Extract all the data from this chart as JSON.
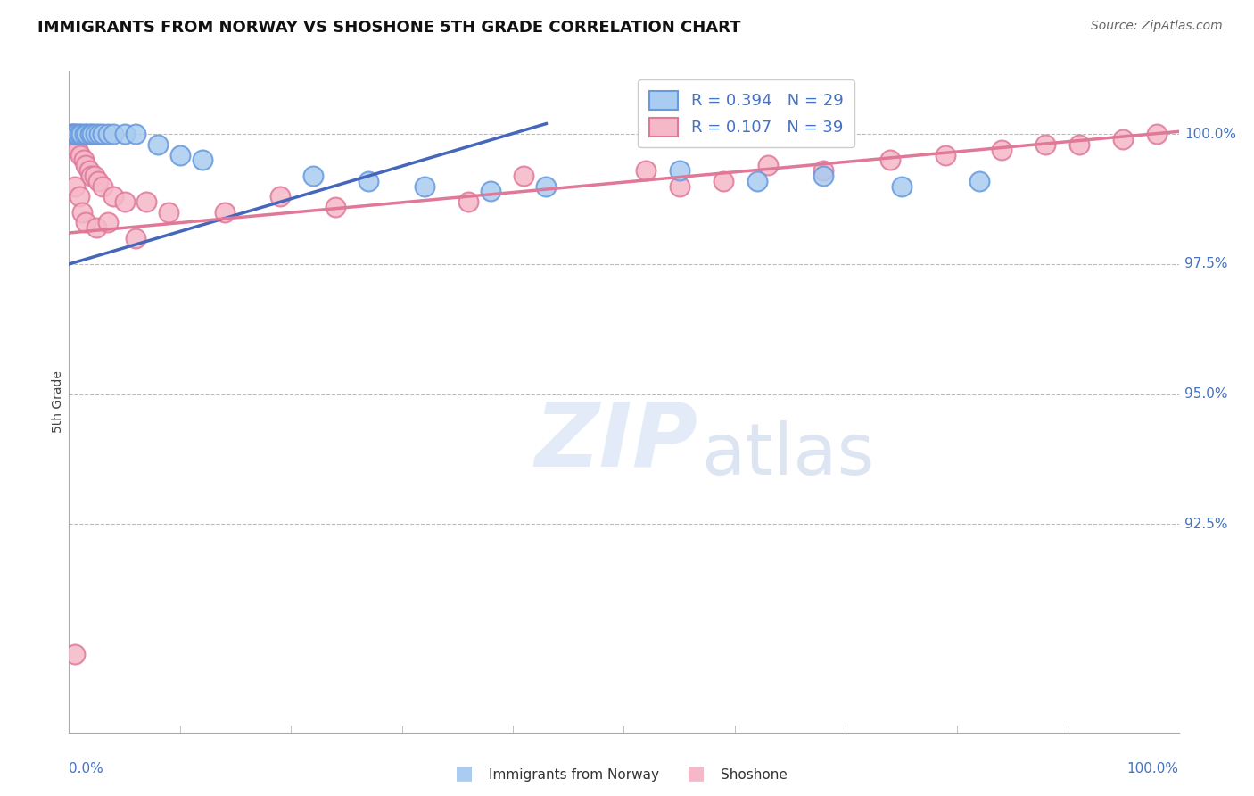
{
  "title": "IMMIGRANTS FROM NORWAY VS SHOSHONE 5TH GRADE CORRELATION CHART",
  "source": "Source: ZipAtlas.com",
  "ylabel": "5th Grade",
  "xlim": [
    0.0,
    100.0
  ],
  "ylim": [
    88.5,
    101.2
  ],
  "yticks": [
    92.5,
    95.0,
    97.5,
    100.0
  ],
  "ytick_labels": [
    "92.5%",
    "95.0%",
    "97.5%",
    "100.0%"
  ],
  "norway_fill": "#AACCF0",
  "norway_edge": "#6699DD",
  "shoshone_fill": "#F5B8C8",
  "shoshone_edge": "#E0789A",
  "norway_line_color": "#4466BB",
  "shoshone_line_color": "#E07898",
  "norway_R": "0.394",
  "norway_N": "29",
  "shoshone_R": "0.107",
  "shoshone_N": "39",
  "legend_R_color": "#4472C4",
  "legend_N_color": "#4472C4",
  "axis_tick_color": "#4472C4",
  "norway_x": [
    0.3,
    0.5,
    0.7,
    0.9,
    1.1,
    1.4,
    1.6,
    1.9,
    2.1,
    2.4,
    2.7,
    3.0,
    3.5,
    4.0,
    5.0,
    6.0,
    8.0,
    10.0,
    12.0,
    22.0,
    27.0,
    32.0,
    38.0,
    43.0,
    55.0,
    62.0,
    68.0,
    75.0,
    82.0
  ],
  "norway_y": [
    100.0,
    100.0,
    100.0,
    100.0,
    100.0,
    100.0,
    100.0,
    100.0,
    100.0,
    100.0,
    100.0,
    100.0,
    100.0,
    100.0,
    100.0,
    100.0,
    99.8,
    99.6,
    99.5,
    99.2,
    99.1,
    99.0,
    98.9,
    99.0,
    99.3,
    99.1,
    99.2,
    99.0,
    99.1
  ],
  "shoshone_x": [
    0.2,
    0.4,
    0.6,
    0.8,
    1.0,
    1.3,
    1.5,
    1.8,
    2.0,
    2.3,
    2.6,
    3.0,
    4.0,
    5.0,
    7.0,
    9.0,
    14.0,
    19.0,
    24.0,
    36.0,
    41.0,
    52.0,
    55.0,
    59.0,
    63.0,
    68.0,
    74.0,
    79.0,
    84.0,
    88.0,
    91.0,
    95.0,
    98.0
  ],
  "shoshone_y": [
    100.0,
    100.0,
    99.8,
    99.7,
    99.6,
    99.5,
    99.4,
    99.3,
    99.2,
    99.2,
    99.1,
    99.0,
    98.8,
    98.7,
    98.7,
    98.5,
    98.5,
    98.8,
    98.6,
    98.7,
    99.2,
    99.3,
    99.0,
    99.1,
    99.4,
    99.3,
    99.5,
    99.6,
    99.7,
    99.8,
    99.8,
    99.9,
    100.0
  ],
  "shoshone_extra_x": [
    0.5,
    0.9,
    1.2,
    1.5,
    2.5,
    3.5,
    6.0
  ],
  "shoshone_extra_y": [
    99.0,
    98.8,
    98.5,
    98.3,
    98.2,
    98.3,
    98.0
  ],
  "shoshone_outlier_x": 0.5,
  "shoshone_outlier_y": 90.0,
  "blue_line_x": [
    0.0,
    43.0
  ],
  "blue_line_y": [
    97.5,
    100.2
  ],
  "pink_line_x": [
    0.0,
    100.0
  ],
  "pink_line_y": [
    98.1,
    100.05
  ],
  "bg_color": "#FFFFFF",
  "grid_color": "#BBBBBB",
  "title_fontsize": 13,
  "source_fontsize": 10,
  "tick_fontsize": 11,
  "ylabel_fontsize": 10,
  "legend_fontsize": 13
}
